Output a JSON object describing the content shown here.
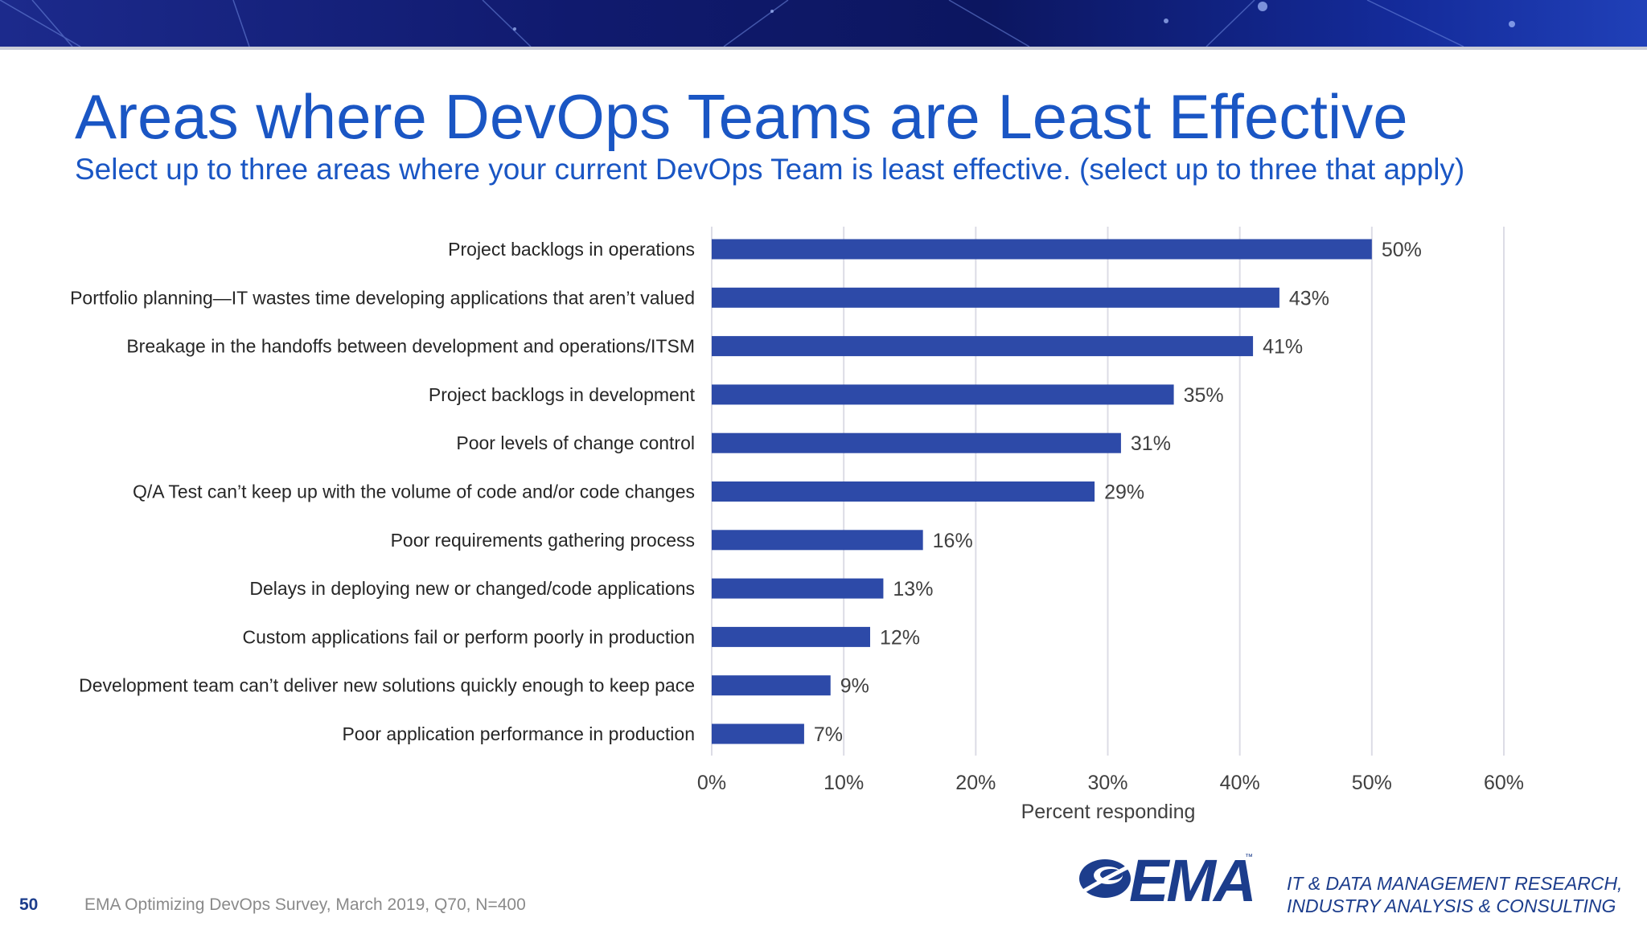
{
  "title": "Areas where DevOps Teams are Least Effective",
  "subtitle": "Select up to three areas where your current DevOps Team is least effective. (select up to three that apply)",
  "footer": {
    "slide_number": "50",
    "source": "EMA  Optimizing DevOps Survey, March 2019, Q70, N=400"
  },
  "logo": {
    "wordmark": "EMA",
    "trademark": "™",
    "tagline_line1": "IT & DATA MANAGEMENT RESEARCH,",
    "tagline_line2": "INDUSTRY ANALYSIS & CONSULTING"
  },
  "colors": {
    "bar": "#2d4aa8",
    "accent": "#1a56c4",
    "grid": "#dcdce6"
  },
  "chart_data": {
    "type": "bar",
    "orientation": "horizontal",
    "categories": [
      "Project backlogs in operations",
      "Portfolio planning—IT wastes time developing applications that aren’t valued",
      "Breakage in the handoffs between development and operations/ITSM",
      "Project backlogs in development",
      "Poor levels of change control",
      "Q/A Test can’t keep up with the volume of code and/or code changes",
      "Poor requirements gathering process",
      "Delays in deploying new or changed/code applications",
      "Custom applications fail or perform poorly in production",
      "Development team can’t deliver new solutions quickly enough to keep pace",
      "Poor application performance in production"
    ],
    "values": [
      50,
      43,
      41,
      35,
      31,
      29,
      16,
      13,
      12,
      9,
      7
    ],
    "data_labels": [
      "50%",
      "43%",
      "41%",
      "35%",
      "31%",
      "29%",
      "16%",
      "13%",
      "12%",
      "9%",
      "7%"
    ],
    "xlabel": "Percent responding",
    "xlim": [
      0,
      60
    ],
    "xticks": [
      0,
      10,
      20,
      30,
      40,
      50,
      60
    ],
    "xtick_labels": [
      "0%",
      "10%",
      "20%",
      "30%",
      "40%",
      "50%",
      "60%"
    ],
    "grid": true,
    "legend": "none"
  }
}
